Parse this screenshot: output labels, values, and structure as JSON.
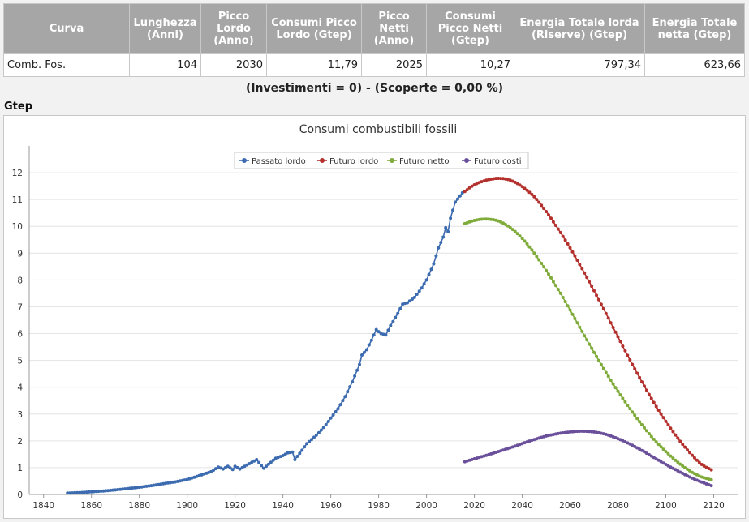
{
  "table": {
    "headers": [
      "Curva",
      "Lunghezza\n(Anni)",
      "Picco\nLordo\n(Anno)",
      "Consumi Picco\nLordo (Gtep)",
      "Picco\nNetti\n(Anno)",
      "Consumi\nPicco Netti\n(Gtep)",
      "Energia Totale lorda\n(Riserve) (Gtep)",
      "Energia Totale\nnetta (Gtep)"
    ],
    "row": [
      "Comb. Fos.",
      "104",
      "2030",
      "11,79",
      "2025",
      "10,27",
      "797,34",
      "623,66"
    ]
  },
  "subtitle": "(Investimenti = 0) - (Scoperte = 0,00 %)",
  "unit_label": "Gtep",
  "colors": {
    "header_bg": "#a6a6a6",
    "passato": "#3c6bb0",
    "futuro_lordo": "#b3302c",
    "futuro_netto": "#7fab3a",
    "futuro_costi": "#6a4f9a"
  },
  "chart_data": {
    "type": "line",
    "title": "Consumi combustibili fossili",
    "xlabel": "",
    "ylabel": "Gtep",
    "xlim": [
      1834,
      2130
    ],
    "ylim": [
      0,
      13
    ],
    "xticks": [
      1840,
      1860,
      1880,
      1900,
      1920,
      1940,
      1960,
      1980,
      2000,
      2020,
      2040,
      2060,
      2080,
      2100,
      2120
    ],
    "yticks": [
      0,
      1,
      2,
      3,
      4,
      5,
      6,
      7,
      8,
      9,
      10,
      11,
      12
    ],
    "legend_position": "top-center",
    "series": [
      {
        "name": "Passato lordo",
        "points": [
          [
            1850,
            0.05
          ],
          [
            1855,
            0.07
          ],
          [
            1860,
            0.1
          ],
          [
            1865,
            0.13
          ],
          [
            1870,
            0.17
          ],
          [
            1875,
            0.22
          ],
          [
            1880,
            0.27
          ],
          [
            1885,
            0.33
          ],
          [
            1890,
            0.4
          ],
          [
            1895,
            0.47
          ],
          [
            1900,
            0.56
          ],
          [
            1905,
            0.7
          ],
          [
            1910,
            0.85
          ],
          [
            1913,
            1.02
          ],
          [
            1915,
            0.95
          ],
          [
            1917,
            1.05
          ],
          [
            1919,
            0.93
          ],
          [
            1920,
            1.05
          ],
          [
            1922,
            0.95
          ],
          [
            1925,
            1.1
          ],
          [
            1929,
            1.3
          ],
          [
            1931,
            1.08
          ],
          [
            1932,
            0.98
          ],
          [
            1935,
            1.2
          ],
          [
            1937,
            1.35
          ],
          [
            1940,
            1.45
          ],
          [
            1942,
            1.55
          ],
          [
            1944,
            1.58
          ],
          [
            1945,
            1.3
          ],
          [
            1946,
            1.42
          ],
          [
            1948,
            1.65
          ],
          [
            1950,
            1.9
          ],
          [
            1952,
            2.05
          ],
          [
            1955,
            2.3
          ],
          [
            1958,
            2.6
          ],
          [
            1960,
            2.85
          ],
          [
            1963,
            3.2
          ],
          [
            1966,
            3.65
          ],
          [
            1969,
            4.2
          ],
          [
            1972,
            4.85
          ],
          [
            1973,
            5.2
          ],
          [
            1975,
            5.4
          ],
          [
            1977,
            5.75
          ],
          [
            1979,
            6.15
          ],
          [
            1981,
            6.0
          ],
          [
            1983,
            5.95
          ],
          [
            1985,
            6.3
          ],
          [
            1988,
            6.75
          ],
          [
            1990,
            7.1
          ],
          [
            1992,
            7.15
          ],
          [
            1995,
            7.35
          ],
          [
            1998,
            7.7
          ],
          [
            2000,
            8.0
          ],
          [
            2003,
            8.6
          ],
          [
            2005,
            9.2
          ],
          [
            2007,
            9.6
          ],
          [
            2008,
            9.95
          ],
          [
            2009,
            9.8
          ],
          [
            2010,
            10.3
          ],
          [
            2012,
            10.9
          ],
          [
            2015,
            11.25
          ]
        ]
      },
      {
        "name": "Futuro lordo",
        "points": [
          [
            2016,
            11.3
          ],
          [
            2020,
            11.55
          ],
          [
            2025,
            11.72
          ],
          [
            2030,
            11.79
          ],
          [
            2035,
            11.72
          ],
          [
            2040,
            11.48
          ],
          [
            2045,
            11.1
          ],
          [
            2050,
            10.55
          ],
          [
            2055,
            9.9
          ],
          [
            2060,
            9.2
          ],
          [
            2065,
            8.42
          ],
          [
            2070,
            7.6
          ],
          [
            2075,
            6.75
          ],
          [
            2080,
            5.88
          ],
          [
            2085,
            5.02
          ],
          [
            2090,
            4.2
          ],
          [
            2095,
            3.43
          ],
          [
            2100,
            2.73
          ],
          [
            2105,
            2.1
          ],
          [
            2110,
            1.56
          ],
          [
            2115,
            1.12
          ],
          [
            2119,
            0.92
          ]
        ]
      },
      {
        "name": "Futuro netto",
        "points": [
          [
            2016,
            10.1
          ],
          [
            2020,
            10.22
          ],
          [
            2025,
            10.27
          ],
          [
            2030,
            10.2
          ],
          [
            2035,
            9.95
          ],
          [
            2040,
            9.55
          ],
          [
            2045,
            9.0
          ],
          [
            2050,
            8.35
          ],
          [
            2055,
            7.65
          ],
          [
            2060,
            6.88
          ],
          [
            2065,
            6.08
          ],
          [
            2070,
            5.3
          ],
          [
            2075,
            4.55
          ],
          [
            2080,
            3.85
          ],
          [
            2085,
            3.2
          ],
          [
            2090,
            2.6
          ],
          [
            2095,
            2.06
          ],
          [
            2100,
            1.6
          ],
          [
            2105,
            1.2
          ],
          [
            2110,
            0.88
          ],
          [
            2115,
            0.65
          ],
          [
            2119,
            0.55
          ]
        ]
      },
      {
        "name": "Futuro costi",
        "points": [
          [
            2016,
            1.22
          ],
          [
            2020,
            1.33
          ],
          [
            2025,
            1.46
          ],
          [
            2030,
            1.6
          ],
          [
            2035,
            1.74
          ],
          [
            2040,
            1.9
          ],
          [
            2045,
            2.05
          ],
          [
            2050,
            2.18
          ],
          [
            2055,
            2.27
          ],
          [
            2060,
            2.33
          ],
          [
            2065,
            2.36
          ],
          [
            2070,
            2.33
          ],
          [
            2075,
            2.24
          ],
          [
            2080,
            2.08
          ],
          [
            2085,
            1.88
          ],
          [
            2090,
            1.64
          ],
          [
            2095,
            1.38
          ],
          [
            2100,
            1.12
          ],
          [
            2105,
            0.88
          ],
          [
            2110,
            0.65
          ],
          [
            2115,
            0.46
          ],
          [
            2119,
            0.33
          ]
        ]
      }
    ]
  }
}
